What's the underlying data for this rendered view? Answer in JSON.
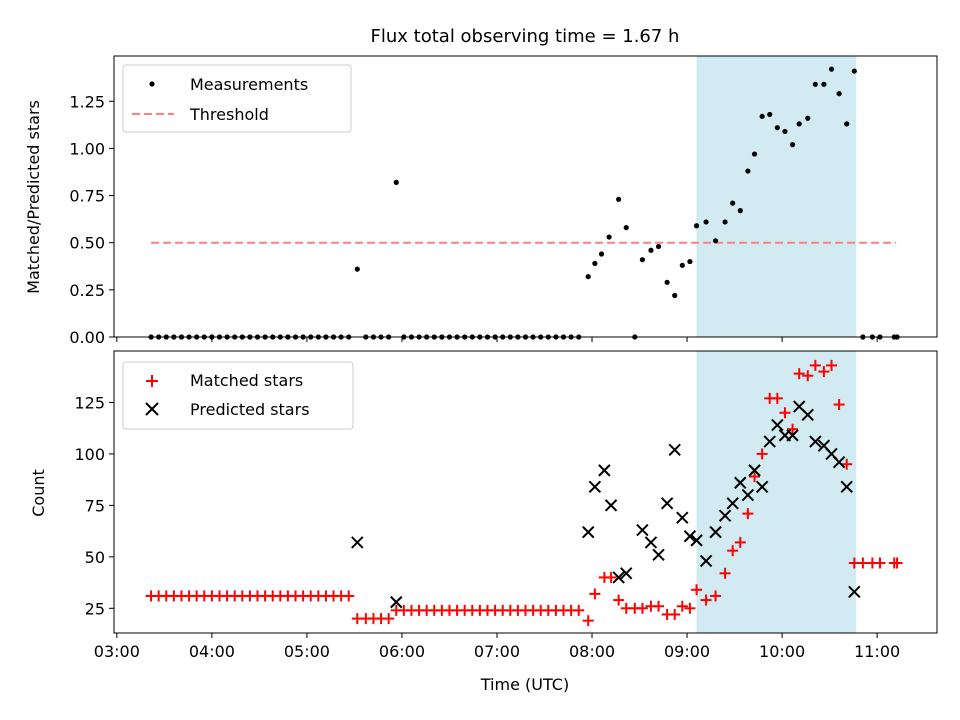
{
  "chart_data": [
    {
      "type": "scatter",
      "title": "Flux total observing time = 1.67 h",
      "xlabel": "",
      "ylabel": "Matched/Predicted stars",
      "xlim": [
        2.97,
        11.63
      ],
      "ylim": [
        0,
        1.49
      ],
      "yticks": [
        0.0,
        0.25,
        0.5,
        0.75,
        1.0,
        1.25
      ],
      "ytick_labels": [
        "0.00",
        "0.25",
        "0.50",
        "0.75",
        "1.00",
        "1.25"
      ],
      "legend": {
        "position": "upper-left",
        "entries": [
          "Measurements",
          "Threshold"
        ]
      },
      "shaded_interval": [
        9.1,
        10.78
      ],
      "shade_color": "#add8e6",
      "threshold": {
        "name": "Threshold",
        "value": 0.5,
        "x_range": [
          3.36,
          11.2
        ],
        "color": "#ff8080"
      },
      "series": [
        {
          "name": "Measurements",
          "color": "#000000",
          "x": [
            3.36,
            3.44,
            3.52,
            3.6,
            3.68,
            3.76,
            3.84,
            3.92,
            4.0,
            4.08,
            4.16,
            4.24,
            4.32,
            4.4,
            4.48,
            4.56,
            4.64,
            4.72,
            4.8,
            4.88,
            4.96,
            5.04,
            5.12,
            5.2,
            5.28,
            5.36,
            5.44,
            5.53,
            5.62,
            5.7,
            5.78,
            5.86,
            5.94,
            6.02,
            6.1,
            6.18,
            6.26,
            6.34,
            6.42,
            6.5,
            6.58,
            6.66,
            6.74,
            6.82,
            6.9,
            6.98,
            7.06,
            7.14,
            7.22,
            7.3,
            7.38,
            7.46,
            7.54,
            7.62,
            7.7,
            7.78,
            7.86,
            7.96,
            8.03,
            8.1,
            8.18,
            8.28,
            8.36,
            8.45,
            8.53,
            8.62,
            8.7,
            8.79,
            8.87,
            8.95,
            9.03,
            9.1,
            9.2,
            9.3,
            9.4,
            9.48,
            9.56,
            9.64,
            9.71,
            9.79,
            9.87,
            9.95,
            10.03,
            10.11,
            10.18,
            10.27,
            10.35,
            10.44,
            10.52,
            10.6,
            10.68,
            10.76,
            10.85,
            10.95,
            11.03,
            11.18,
            11.21
          ],
          "y": [
            0,
            0,
            0,
            0,
            0,
            0,
            0,
            0,
            0,
            0,
            0,
            0,
            0,
            0,
            0,
            0,
            0,
            0,
            0,
            0,
            0,
            0,
            0,
            0,
            0,
            0,
            0,
            0.36,
            0,
            0,
            0,
            0,
            0.82,
            0,
            0,
            0,
            0,
            0,
            0,
            0,
            0,
            0,
            0,
            0,
            0,
            0,
            0,
            0,
            0,
            0,
            0,
            0,
            0,
            0,
            0,
            0,
            0,
            0.32,
            0.39,
            0.44,
            0.53,
            0.73,
            0.58,
            0,
            0.41,
            0.46,
            0.48,
            0.29,
            0.22,
            0.38,
            0.4,
            0.59,
            0.61,
            0.51,
            0.61,
            0.71,
            0.67,
            0.88,
            0.97,
            1.17,
            1.18,
            1.11,
            1.09,
            1.02,
            1.13,
            1.16,
            1.34,
            1.34,
            1.42,
            1.29,
            1.13,
            1.41,
            0,
            0,
            0,
            0,
            0
          ]
        }
      ]
    },
    {
      "type": "scatter",
      "title": "",
      "xlabel": "Time (UTC)",
      "ylabel": "Count",
      "xlim": [
        2.97,
        11.63
      ],
      "ylim": [
        13,
        150
      ],
      "xticks": [
        3,
        4,
        5,
        6,
        7,
        8,
        9,
        10,
        11
      ],
      "xtick_labels": [
        "03:00",
        "04:00",
        "05:00",
        "06:00",
        "07:00",
        "08:00",
        "09:00",
        "10:00",
        "11:00"
      ],
      "yticks": [
        25,
        50,
        75,
        100,
        125
      ],
      "ytick_labels": [
        "25",
        "50",
        "75",
        "100",
        "125"
      ],
      "legend": {
        "position": "upper-left",
        "entries": [
          "Matched stars",
          "Predicted stars"
        ]
      },
      "shaded_interval": [
        9.1,
        10.78
      ],
      "shade_color": "#add8e6",
      "series": [
        {
          "name": "Matched stars",
          "marker": "plus",
          "color": "#ff0000",
          "x": [
            3.36,
            3.44,
            3.52,
            3.6,
            3.68,
            3.76,
            3.84,
            3.92,
            4.0,
            4.08,
            4.16,
            4.24,
            4.32,
            4.4,
            4.48,
            4.56,
            4.64,
            4.72,
            4.8,
            4.88,
            4.96,
            5.04,
            5.12,
            5.2,
            5.28,
            5.36,
            5.44,
            5.53,
            5.62,
            5.7,
            5.78,
            5.86,
            5.94,
            6.02,
            6.1,
            6.18,
            6.26,
            6.34,
            6.42,
            6.5,
            6.58,
            6.66,
            6.74,
            6.82,
            6.9,
            6.98,
            7.06,
            7.14,
            7.22,
            7.3,
            7.38,
            7.46,
            7.54,
            7.62,
            7.7,
            7.78,
            7.86,
            7.96,
            8.03,
            8.13,
            8.2,
            8.28,
            8.36,
            8.45,
            8.53,
            8.62,
            8.7,
            8.79,
            8.87,
            8.95,
            9.03,
            9.1,
            9.2,
            9.3,
            9.4,
            9.48,
            9.56,
            9.64,
            9.71,
            9.79,
            9.87,
            9.95,
            10.03,
            10.11,
            10.18,
            10.27,
            10.35,
            10.44,
            10.52,
            10.6,
            10.68,
            10.76,
            10.85,
            10.95,
            11.03,
            11.18,
            11.21
          ],
          "y": [
            31,
            31,
            31,
            31,
            31,
            31,
            31,
            31,
            31,
            31,
            31,
            31,
            31,
            31,
            31,
            31,
            31,
            31,
            31,
            31,
            31,
            31,
            31,
            31,
            31,
            31,
            31,
            20,
            20,
            20,
            20,
            20,
            24,
            24,
            24,
            24,
            24,
            24,
            24,
            24,
            24,
            24,
            24,
            24,
            24,
            24,
            24,
            24,
            24,
            24,
            24,
            24,
            24,
            24,
            24,
            24,
            24,
            19,
            32,
            40,
            40,
            29,
            25,
            25,
            25,
            26,
            26,
            22,
            22,
            26,
            25,
            34,
            29,
            31,
            42,
            53,
            57,
            71,
            89,
            100,
            127,
            127,
            120,
            112,
            139,
            138,
            143,
            140,
            143,
            124,
            95,
            47,
            47,
            47,
            47,
            47,
            47
          ]
        },
        {
          "name": "Predicted stars",
          "marker": "x",
          "color": "#000000",
          "x": [
            5.53,
            5.94,
            7.96,
            8.03,
            8.13,
            8.2,
            8.28,
            8.36,
            8.53,
            8.62,
            8.7,
            8.79,
            8.87,
            8.95,
            9.03,
            9.1,
            9.2,
            9.3,
            9.4,
            9.48,
            9.56,
            9.64,
            9.71,
            9.79,
            9.87,
            9.95,
            10.03,
            10.11,
            10.18,
            10.27,
            10.35,
            10.44,
            10.52,
            10.6,
            10.68,
            10.76
          ],
          "y": [
            57,
            28,
            62,
            84,
            92,
            75,
            40,
            42,
            63,
            57,
            51,
            76,
            102,
            69,
            60,
            58,
            48,
            62,
            70,
            76,
            86,
            80,
            92,
            84,
            106,
            114,
            109,
            109,
            123,
            119,
            106,
            104,
            100,
            96,
            84,
            33
          ]
        }
      ]
    }
  ]
}
